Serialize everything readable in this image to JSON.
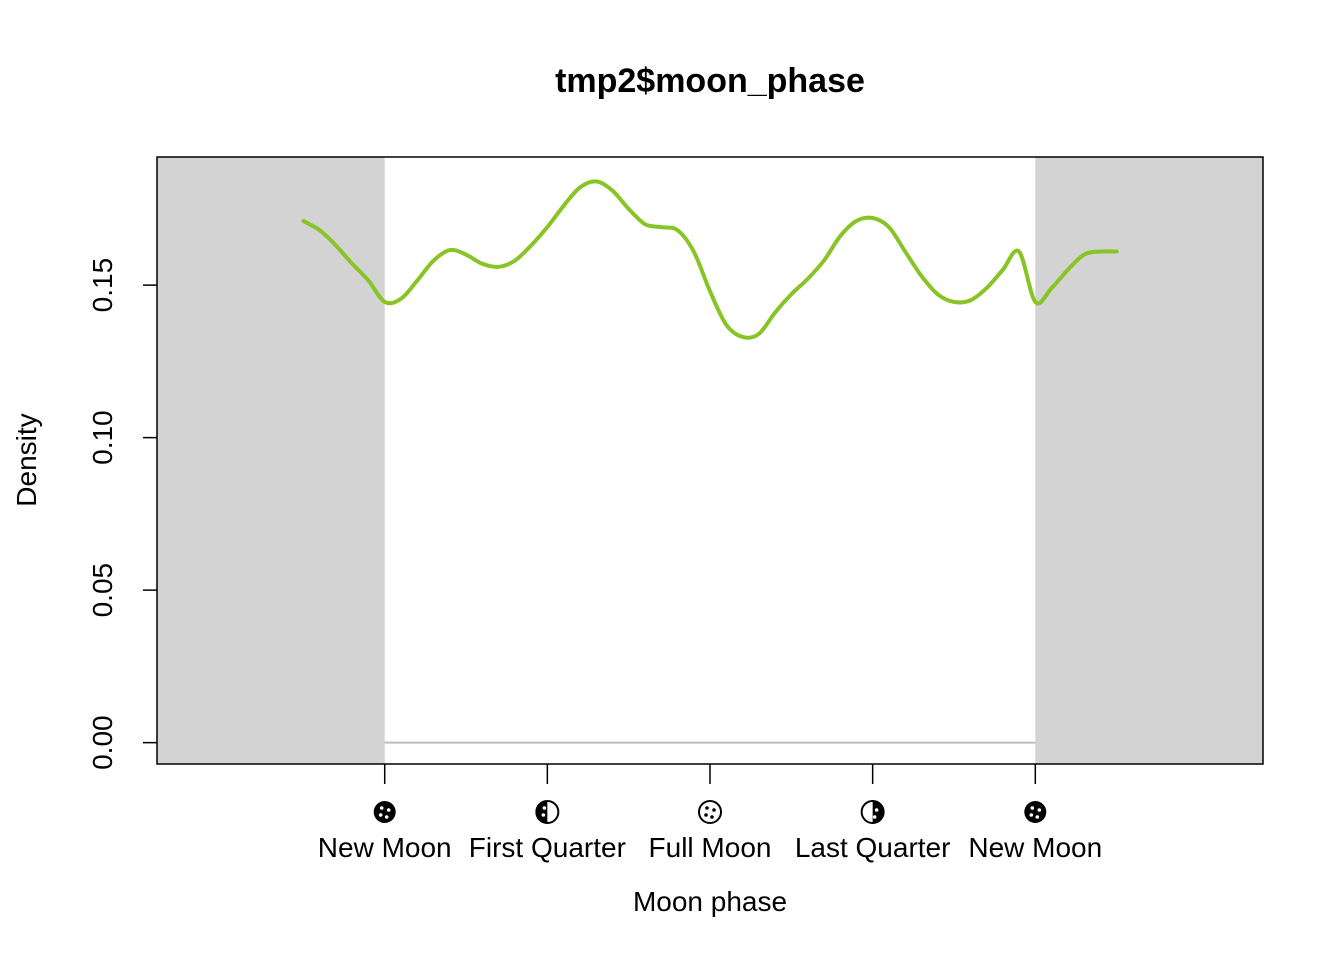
{
  "chart_data": {
    "type": "line",
    "title": "tmp2$moon_phase",
    "xlabel": "Moon phase",
    "ylabel": "Density",
    "xlim": [
      -0.35,
      1.35
    ],
    "ylim": [
      -0.007,
      0.192
    ],
    "x_ticks": [
      {
        "value": 0.0,
        "label": "New Moon",
        "icon": "new-moon-icon"
      },
      {
        "value": 0.25,
        "label": "First Quarter",
        "icon": "first-quarter-moon-icon"
      },
      {
        "value": 0.5,
        "label": "Full Moon",
        "icon": "full-moon-icon"
      },
      {
        "value": 0.75,
        "label": "Last Quarter",
        "icon": "last-quarter-moon-icon"
      },
      {
        "value": 1.0,
        "label": "New Moon",
        "icon": "new-moon-icon"
      }
    ],
    "y_ticks": [
      {
        "value": 0.0,
        "label": "0.00"
      },
      {
        "value": 0.05,
        "label": "0.05"
      },
      {
        "value": 0.1,
        "label": "0.10"
      },
      {
        "value": 0.15,
        "label": "0.15"
      }
    ],
    "shaded_ranges": [
      [
        -0.35,
        0.0
      ],
      [
        1.0,
        1.35
      ]
    ],
    "baseline": {
      "y": 0.0,
      "x_range": [
        0.0,
        1.0
      ]
    },
    "series": [
      {
        "color": "#88c425",
        "x": [
          -0.125,
          -0.1,
          -0.075,
          -0.05,
          -0.025,
          0.0,
          0.025,
          0.05,
          0.075,
          0.1,
          0.125,
          0.15,
          0.175,
          0.2,
          0.225,
          0.25,
          0.275,
          0.3,
          0.325,
          0.35,
          0.375,
          0.4,
          0.425,
          0.45,
          0.475,
          0.5,
          0.525,
          0.55,
          0.575,
          0.6,
          0.625,
          0.65,
          0.675,
          0.7,
          0.725,
          0.75,
          0.775,
          0.8,
          0.825,
          0.85,
          0.875,
          0.9,
          0.925,
          0.95,
          0.975,
          1.0,
          1.025,
          1.05,
          1.075,
          1.1,
          1.125
        ],
        "y": [
          0.171,
          0.168,
          0.163,
          0.157,
          0.1515,
          0.1445,
          0.1455,
          0.1515,
          0.158,
          0.1615,
          0.16,
          0.157,
          0.156,
          0.158,
          0.163,
          0.169,
          0.176,
          0.182,
          0.184,
          0.181,
          0.175,
          0.17,
          0.169,
          0.168,
          0.161,
          0.148,
          0.137,
          0.133,
          0.134,
          0.141,
          0.147,
          0.152,
          0.158,
          0.166,
          0.171,
          0.172,
          0.169,
          0.161,
          0.153,
          0.147,
          0.1445,
          0.145,
          0.149,
          0.155,
          0.161,
          0.1445,
          0.149,
          0.155,
          0.16,
          0.161,
          0.161
        ]
      }
    ]
  }
}
